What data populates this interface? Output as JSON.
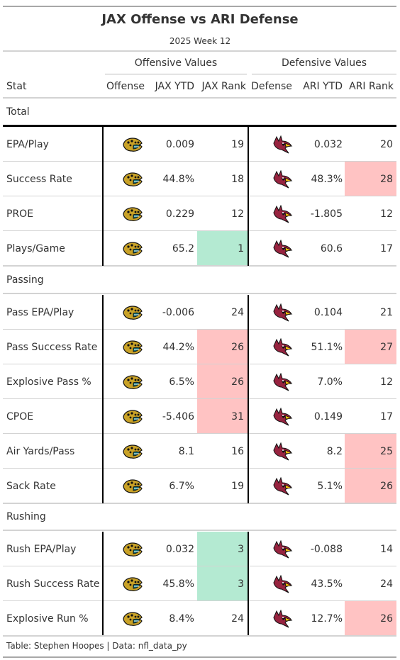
{
  "title": "JAX Offense vs ARI Defense",
  "subtitle": "2025 Week 12",
  "spanners": {
    "offense": "Offensive Values",
    "defense": "Defensive Values"
  },
  "columns": {
    "stat": "Stat",
    "offense": "Offense",
    "jax_ytd": "JAX YTD",
    "jax_rank": "JAX Rank",
    "defense": "Defense",
    "ari_ytd": "ARI YTD",
    "ari_rank": "ARI Rank"
  },
  "logos": {
    "offense": "jaguars-logo-icon",
    "defense": "cardinals-logo-icon"
  },
  "colors": {
    "good": "#b4ead2",
    "bad": "#ffc3c3",
    "rule": "#d3d3d3",
    "bar": "#000000"
  },
  "groups": [
    {
      "label": "Total",
      "rows": [
        {
          "stat": "EPA/Play",
          "jax_ytd": "0.009",
          "jax_rank": "19",
          "ari_ytd": "0.032",
          "ari_rank": "20",
          "jax_shade": "",
          "ari_shade": ""
        },
        {
          "stat": "Success Rate",
          "jax_ytd": "44.8%",
          "jax_rank": "18",
          "ari_ytd": "48.3%",
          "ari_rank": "28",
          "jax_shade": "",
          "ari_shade": "bad"
        },
        {
          "stat": "PROE",
          "jax_ytd": "0.229",
          "jax_rank": "12",
          "ari_ytd": "-1.805",
          "ari_rank": "12",
          "jax_shade": "",
          "ari_shade": ""
        },
        {
          "stat": "Plays/Game",
          "jax_ytd": "65.2",
          "jax_rank": "1",
          "ari_ytd": "60.6",
          "ari_rank": "17",
          "jax_shade": "good",
          "ari_shade": ""
        }
      ]
    },
    {
      "label": "Passing",
      "rows": [
        {
          "stat": "Pass EPA/Play",
          "jax_ytd": "-0.006",
          "jax_rank": "24",
          "ari_ytd": "0.104",
          "ari_rank": "21",
          "jax_shade": "",
          "ari_shade": ""
        },
        {
          "stat": "Pass Success Rate",
          "jax_ytd": "44.2%",
          "jax_rank": "26",
          "ari_ytd": "51.1%",
          "ari_rank": "27",
          "jax_shade": "bad",
          "ari_shade": "bad"
        },
        {
          "stat": "Explosive Pass %",
          "jax_ytd": "6.5%",
          "jax_rank": "26",
          "ari_ytd": "7.0%",
          "ari_rank": "12",
          "jax_shade": "bad",
          "ari_shade": ""
        },
        {
          "stat": "CPOE",
          "jax_ytd": "-5.406",
          "jax_rank": "31",
          "ari_ytd": "0.149",
          "ari_rank": "17",
          "jax_shade": "bad",
          "ari_shade": ""
        },
        {
          "stat": "Air Yards/Pass",
          "jax_ytd": "8.1",
          "jax_rank": "16",
          "ari_ytd": "8.2",
          "ari_rank": "25",
          "jax_shade": "",
          "ari_shade": "bad"
        },
        {
          "stat": "Sack Rate",
          "jax_ytd": "6.7%",
          "jax_rank": "19",
          "ari_ytd": "5.1%",
          "ari_rank": "26",
          "jax_shade": "",
          "ari_shade": "bad"
        }
      ]
    },
    {
      "label": "Rushing",
      "rows": [
        {
          "stat": "Rush EPA/Play",
          "jax_ytd": "0.032",
          "jax_rank": "3",
          "ari_ytd": "-0.088",
          "ari_rank": "14",
          "jax_shade": "good",
          "ari_shade": ""
        },
        {
          "stat": "Rush Success Rate",
          "jax_ytd": "45.8%",
          "jax_rank": "3",
          "ari_ytd": "43.5%",
          "ari_rank": "24",
          "jax_shade": "good",
          "ari_shade": ""
        },
        {
          "stat": "Explosive Run %",
          "jax_ytd": "8.4%",
          "jax_rank": "24",
          "ari_ytd": "12.7%",
          "ari_rank": "26",
          "jax_shade": "",
          "ari_shade": "bad"
        }
      ]
    }
  ],
  "footer": "Table: Stephen Hoopes | Data: nfl_data_py"
}
